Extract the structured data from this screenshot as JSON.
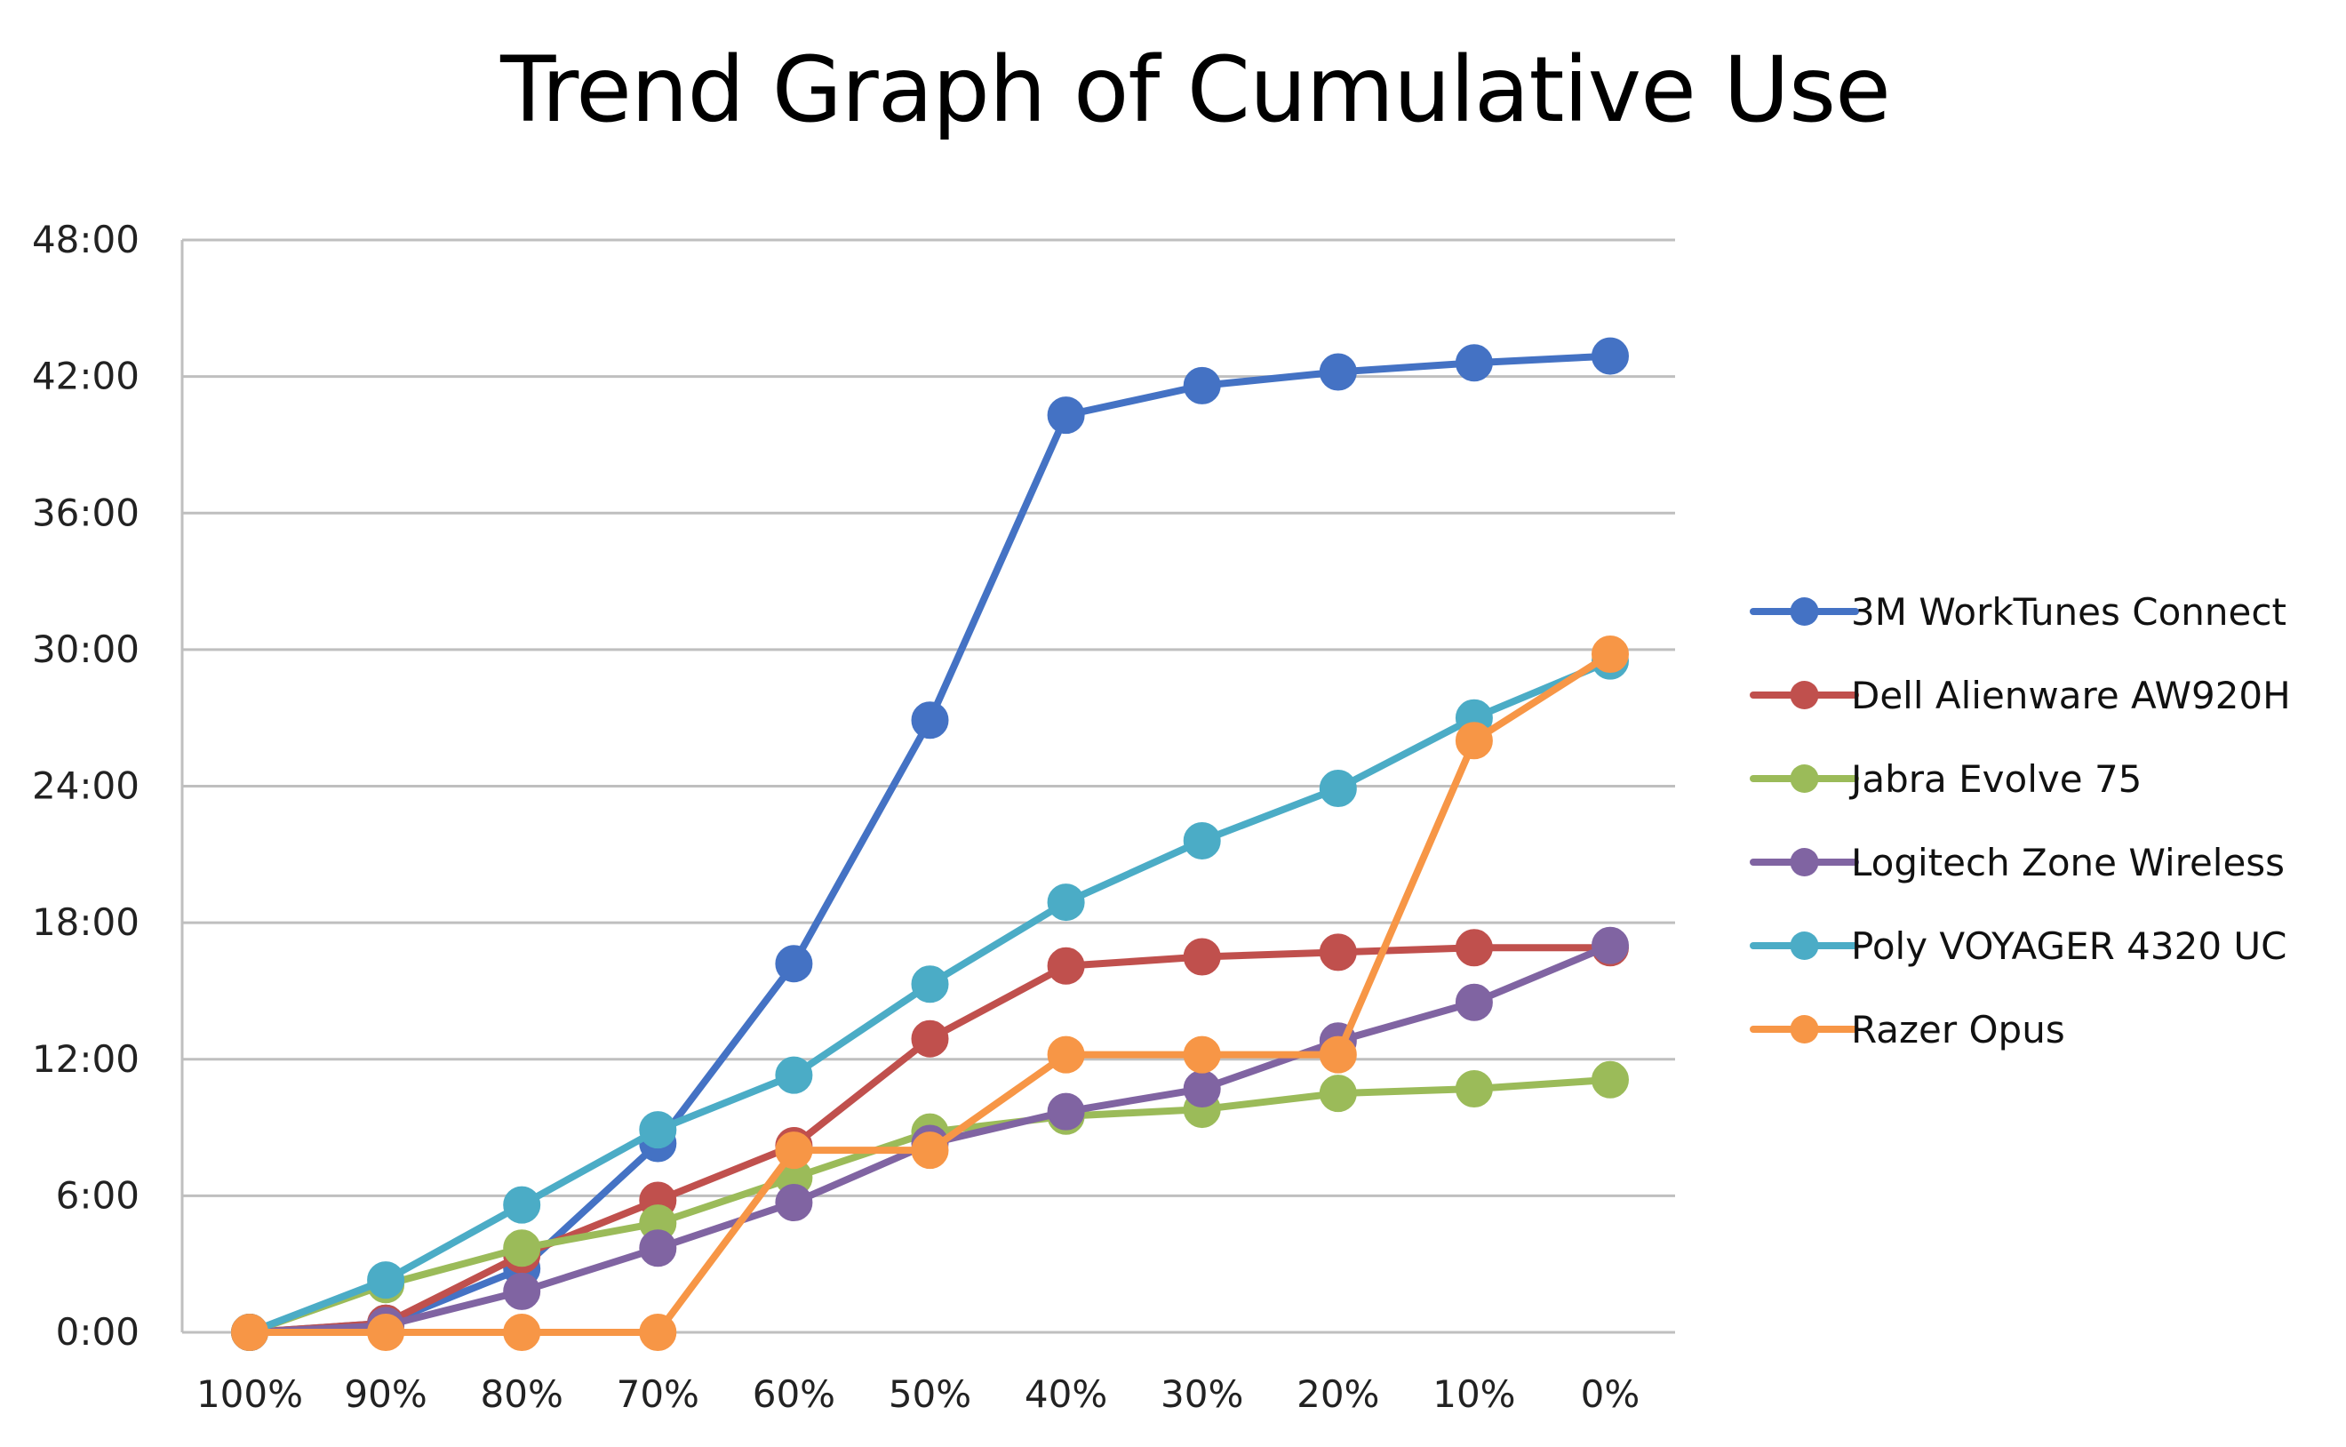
{
  "chart_data": {
    "type": "line",
    "title": "Trend Graph of Cumulative Use",
    "xlabel": "",
    "ylabel": "",
    "categories": [
      "100%",
      "90%",
      "80%",
      "70%",
      "60%",
      "50%",
      "40%",
      "30%",
      "20%",
      "10%",
      "0%"
    ],
    "y_ticks": [
      "0:00",
      "6:00",
      "12:00",
      "18:00",
      "24:00",
      "30:00",
      "36:00",
      "42:00",
      "48:00"
    ],
    "ylim_hours": [
      0,
      48
    ],
    "grid": "horizontal",
    "legend_position": "right",
    "series": [
      {
        "name": "3M WorkTunes Connect",
        "color": "#4472C4",
        "values": [
          0,
          0.4,
          2.8,
          8.3,
          16.2,
          26.9,
          40.3,
          41.6,
          42.2,
          42.6,
          42.9
        ]
      },
      {
        "name": "Dell Alienware AW920H",
        "color": "#C0504D",
        "values": [
          0,
          0.4,
          3.4,
          5.8,
          8.2,
          12.9,
          16.1,
          16.5,
          16.7,
          16.9,
          16.9
        ]
      },
      {
        "name": "Jabra Evolve 75",
        "color": "#9BBB59",
        "values": [
          0,
          2.1,
          3.7,
          4.8,
          6.8,
          8.8,
          9.5,
          9.8,
          10.5,
          10.7,
          11.1
        ]
      },
      {
        "name": "Logitech Zone Wireless",
        "color": "#8064A2",
        "values": [
          0,
          0.3,
          1.8,
          3.7,
          5.7,
          8.3,
          9.7,
          10.7,
          12.8,
          14.5,
          17.0
        ]
      },
      {
        "name": "Poly VOYAGER 4320 UC",
        "color": "#4BACC6",
        "values": [
          0,
          2.3,
          5.6,
          8.9,
          11.3,
          15.3,
          18.9,
          21.6,
          23.9,
          27.0,
          29.5
        ]
      },
      {
        "name": "Razer Opus",
        "color": "#F79646",
        "values": [
          0,
          0,
          0,
          0,
          8.0,
          8.0,
          12.2,
          12.2,
          12.2,
          26.0,
          29.8
        ]
      }
    ]
  }
}
